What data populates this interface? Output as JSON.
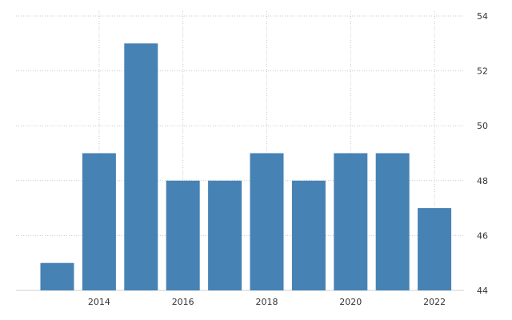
{
  "chart_data": {
    "type": "bar",
    "categories": [
      "2013",
      "2014",
      "2015",
      "2016",
      "2017",
      "2018",
      "2019",
      "2020",
      "2021",
      "2022"
    ],
    "values": [
      45,
      49,
      53,
      48,
      48,
      49,
      48,
      49,
      49,
      47
    ],
    "x_tick_labels": [
      "2014",
      "2016",
      "2018",
      "2020",
      "2022"
    ],
    "y_ticks": [
      44,
      46,
      48,
      50,
      52,
      54
    ],
    "ylim": [
      44,
      54
    ],
    "title": "",
    "xlabel": "",
    "ylabel": "",
    "grid": true,
    "bar_color": "#4682b4",
    "y_axis_side": "right"
  }
}
